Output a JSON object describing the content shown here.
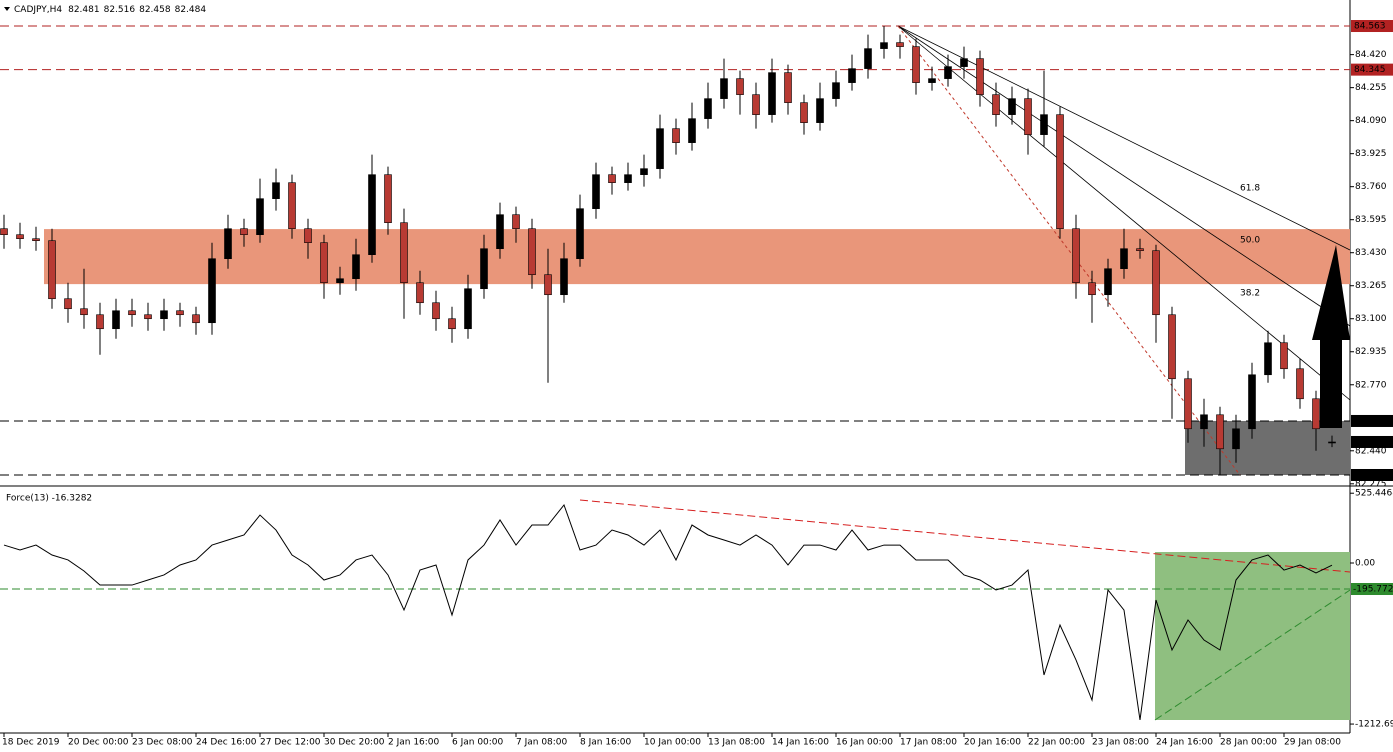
{
  "chart_data": [
    {
      "type": "candlestick",
      "title": "CADJPY,H4",
      "header_values": [
        82.481,
        82.516,
        82.458,
        82.484
      ],
      "open": [
        83.55,
        83.52,
        83.5,
        83.49,
        83.2,
        83.15,
        83.12,
        83.05,
        83.14,
        83.12,
        83.1,
        83.14,
        83.12,
        83.08,
        83.4,
        83.55,
        83.52,
        83.7,
        83.78,
        83.55,
        83.48,
        83.28,
        83.3,
        83.42,
        83.82,
        83.58,
        83.28,
        83.18,
        83.1,
        83.05,
        83.25,
        83.45,
        83.62,
        83.55,
        83.32,
        83.22,
        83.4,
        83.65,
        83.82,
        83.78,
        83.82,
        83.85,
        84.05,
        83.98,
        84.1,
        84.2,
        84.3,
        84.22,
        84.12,
        84.33,
        84.18,
        84.08,
        84.2,
        84.28,
        84.35,
        84.45,
        84.48,
        84.46,
        84.28,
        84.3,
        84.36,
        84.4,
        84.22,
        84.12,
        84.2,
        84.02,
        84.12,
        83.55,
        83.28,
        83.22,
        83.35,
        83.45,
        83.44,
        83.12,
        82.8,
        82.55,
        82.62,
        82.45,
        82.55,
        82.82,
        82.98,
        82.85,
        82.7,
        82.481
      ],
      "high": [
        83.62,
        83.58,
        83.56,
        83.55,
        83.28,
        83.35,
        83.18,
        83.2,
        83.2,
        83.18,
        83.2,
        83.18,
        83.16,
        83.48,
        83.62,
        83.6,
        83.8,
        83.85,
        83.82,
        83.6,
        83.52,
        83.36,
        83.5,
        83.92,
        83.86,
        83.65,
        83.34,
        83.24,
        83.16,
        83.32,
        83.52,
        83.68,
        83.66,
        83.6,
        83.45,
        83.48,
        83.72,
        83.88,
        83.86,
        83.88,
        83.92,
        84.12,
        84.1,
        84.18,
        84.28,
        84.4,
        84.34,
        84.28,
        84.4,
        84.37,
        84.22,
        84.28,
        84.34,
        84.42,
        84.52,
        84.563,
        84.52,
        84.5,
        84.36,
        84.42,
        84.46,
        84.44,
        84.28,
        84.26,
        84.25,
        84.34,
        84.16,
        83.62,
        83.34,
        83.4,
        83.55,
        83.5,
        83.47,
        83.16,
        82.84,
        82.7,
        82.66,
        82.62,
        82.88,
        83.04,
        83.02,
        82.9,
        82.74,
        82.516
      ],
      "low": [
        83.45,
        83.45,
        83.44,
        83.15,
        83.08,
        83.05,
        82.92,
        83.0,
        83.06,
        83.04,
        83.04,
        83.06,
        83.02,
        83.02,
        83.35,
        83.46,
        83.48,
        83.64,
        83.5,
        83.4,
        83.2,
        83.22,
        83.24,
        83.38,
        83.52,
        83.1,
        83.12,
        83.04,
        82.98,
        83.0,
        83.2,
        83.4,
        83.48,
        83.25,
        82.78,
        83.18,
        83.36,
        83.6,
        83.72,
        83.74,
        83.76,
        83.8,
        83.92,
        83.94,
        84.05,
        84.15,
        84.12,
        84.05,
        84.08,
        84.12,
        84.02,
        84.04,
        84.16,
        84.24,
        84.3,
        84.4,
        84.4,
        84.22,
        84.24,
        84.26,
        84.3,
        84.16,
        84.06,
        84.07,
        83.92,
        83.96,
        83.5,
        83.2,
        83.08,
        83.16,
        83.3,
        83.4,
        82.98,
        82.6,
        82.48,
        82.46,
        82.319,
        82.38,
        82.5,
        82.78,
        82.8,
        82.65,
        82.44,
        82.458
      ],
      "close": [
        83.52,
        83.5,
        83.49,
        83.2,
        83.15,
        83.12,
        83.05,
        83.14,
        83.12,
        83.1,
        83.14,
        83.12,
        83.08,
        83.4,
        83.55,
        83.52,
        83.7,
        83.78,
        83.55,
        83.48,
        83.28,
        83.3,
        83.42,
        83.82,
        83.58,
        83.28,
        83.18,
        83.1,
        83.05,
        83.25,
        83.45,
        83.62,
        83.55,
        83.32,
        83.22,
        83.4,
        83.65,
        83.82,
        83.78,
        83.82,
        83.85,
        84.05,
        83.98,
        84.1,
        84.2,
        84.3,
        84.22,
        84.12,
        84.33,
        84.18,
        84.08,
        84.2,
        84.28,
        84.35,
        84.45,
        84.48,
        84.46,
        84.28,
        84.3,
        84.36,
        84.4,
        84.22,
        84.12,
        84.2,
        84.02,
        84.12,
        83.55,
        83.28,
        83.22,
        83.35,
        83.45,
        83.44,
        83.12,
        82.8,
        82.55,
        82.62,
        82.45,
        82.55,
        82.82,
        82.98,
        82.85,
        82.7,
        82.55,
        82.484
      ],
      "up_color": "#000000",
      "down_color": "#b83a33",
      "ylim": [
        82.279,
        84.693
      ],
      "yticks": [
        {
          "value": 84.42,
          "label": "84.420"
        },
        84.255,
        {
          "value": 84.09,
          "label": "84.090"
        },
        83.925,
        {
          "value": 83.76,
          "label": "83.760"
        },
        83.595,
        {
          "value": 83.43,
          "label": "83.430"
        },
        83.265,
        {
          "value": 83.1,
          "label": "83.100"
        },
        82.935,
        {
          "value": 82.77,
          "label": "82.770"
        },
        {
          "value": 82.44,
          "label": "82.440"
        },
        82.275
      ],
      "levels": [
        {
          "value": 84.563,
          "color": "#b22222"
        },
        {
          "value": 84.345,
          "color": "#b22222"
        },
        {
          "value": 82.589,
          "color": "#000000"
        },
        {
          "value": 82.319,
          "color": "#000000"
        }
      ],
      "current": 82.484,
      "zone": [
        83.273,
        83.548
      ],
      "zone_color": "#e9967a",
      "box": [
        82.319,
        82.589
      ],
      "box_color": "#6e6e6e",
      "fan_labels": [
        "61.8",
        "50.0",
        "38.2"
      ],
      "x_labels": [
        "18 Dec 2019",
        "20 Dec 00:00",
        "23 Dec 08:00",
        "24 Dec 16:00",
        "27 Dec 12:00",
        "30 Dec 20:00",
        "2 Jan 16:00",
        "6 Jan 00:00",
        "7 Jan 08:00",
        "8 Jan 16:00",
        "10 Jan 00:00",
        "13 Jan 08:00",
        "14 Jan 16:00",
        "16 Jan 00:00",
        "17 Jan 08:00",
        "20 Jan 16:00",
        "22 Jan 00:00",
        "23 Jan 08:00",
        "24 Jan 16:00",
        "28 Jan 00:00",
        "29 Jan 08:00"
      ]
    },
    {
      "type": "line",
      "title": "Force(13) -16.3282",
      "color": "#000000",
      "values": [
        135,
        98,
        135,
        60,
        23,
        -60,
        -166,
        -166,
        -166,
        -128,
        -90,
        -15,
        23,
        135,
        173,
        211,
        361,
        248,
        60,
        -15,
        -128,
        -90,
        23,
        60,
        -90,
        -354,
        -53,
        -15,
        -392,
        23,
        135,
        324,
        135,
        286,
        286,
        437,
        98,
        135,
        248,
        211,
        135,
        248,
        23,
        286,
        211,
        173,
        135,
        211,
        135,
        -15,
        135,
        135,
        98,
        248,
        98,
        135,
        135,
        23,
        23,
        23,
        -90,
        -128,
        -203,
        -166,
        -53,
        -843,
        -467,
        -730,
        -1032,
        -203,
        -354,
        -1182,
        -279,
        -655,
        -429,
        -580,
        -655,
        -128,
        23,
        60,
        -53,
        -15,
        -75,
        -16.3282
      ],
      "ylim": [
        -1280,
        549.7
      ],
      "yticks": [
        525.4468,
        {
          "value": 0,
          "label": "0.00"
        },
        -1212.69
      ],
      "level": -195.772,
      "level_color": "#2e8b2e",
      "box_color": "#8fbf80"
    }
  ]
}
